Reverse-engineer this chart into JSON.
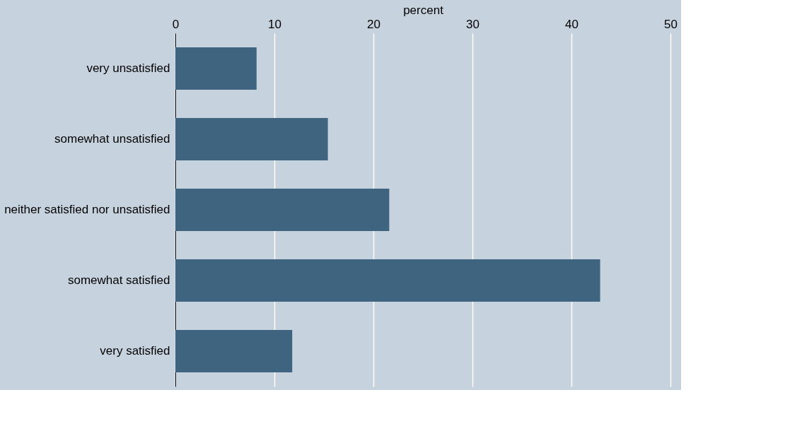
{
  "chart_data": {
    "type": "bar",
    "orientation": "horizontal",
    "xlabel": "percent",
    "categories": [
      "very unsatisfied",
      "somewhat unsatisfied",
      "neither satisfied nor unsatisfied",
      "somewhat satisfied",
      "very satisfied"
    ],
    "values": [
      8.2,
      15.4,
      21.6,
      42.9,
      11.8
    ],
    "color": "#3e6480",
    "xlim": [
      0,
      50
    ],
    "xticks": [
      0,
      10,
      20,
      30,
      40,
      50
    ],
    "grid": "x"
  }
}
